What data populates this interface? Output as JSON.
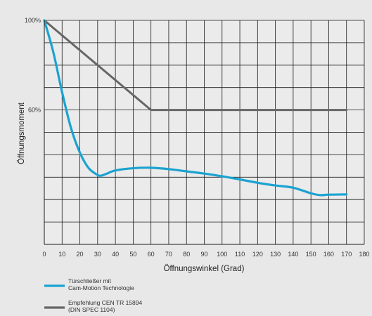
{
  "chart_data": {
    "type": "line",
    "xlabel": "Öffnungswinkel (Grad)",
    "ylabel": "Öffnungsmoment",
    "xlim": [
      0,
      180
    ],
    "ylim": [
      0,
      100
    ],
    "x_ticks": [
      0,
      10,
      20,
      30,
      40,
      50,
      60,
      70,
      80,
      90,
      100,
      110,
      120,
      130,
      140,
      150,
      160,
      170,
      180
    ],
    "x_tick_labels": [
      "0",
      "10",
      "20",
      "30",
      "40",
      "50",
      "60",
      "70",
      "80",
      "90",
      "100",
      "110",
      "120",
      "130",
      "140",
      "150",
      "160",
      "170",
      "180"
    ],
    "y_tick_labels": [
      {
        "value": 100,
        "label": "100%"
      },
      {
        "value": 60,
        "label": "60%"
      }
    ],
    "grid": true,
    "legend": "bottom-left",
    "series": [
      {
        "name": "Türschließer mit Cam-Motion Technologie",
        "legend_lines": [
          "Türschließer mit",
          "Cam-Motion Technologie"
        ],
        "color": "#1aa3d1",
        "x": [
          0,
          5,
          10,
          15,
          20,
          25,
          30,
          32,
          35,
          40,
          50,
          60,
          70,
          80,
          90,
          100,
          110,
          120,
          130,
          140,
          150,
          155,
          160,
          170
        ],
        "y": [
          100,
          86,
          68,
          52,
          41,
          34,
          31,
          30.7,
          31.5,
          33,
          34,
          34.2,
          33.6,
          32.6,
          31.6,
          30.4,
          29,
          27.5,
          26.3,
          25.3,
          22.8,
          22,
          22.2,
          22.3
        ]
      },
      {
        "name": "Empfehlung CEN TR 15894 (DIN SPEC 1104)",
        "legend_lines": [
          "Empfehlung CEN TR 15894",
          "(DIN SPEC 1104)"
        ],
        "color": "#666666",
        "x": [
          0,
          60,
          170
        ],
        "y": [
          100,
          60,
          60
        ]
      }
    ]
  }
}
